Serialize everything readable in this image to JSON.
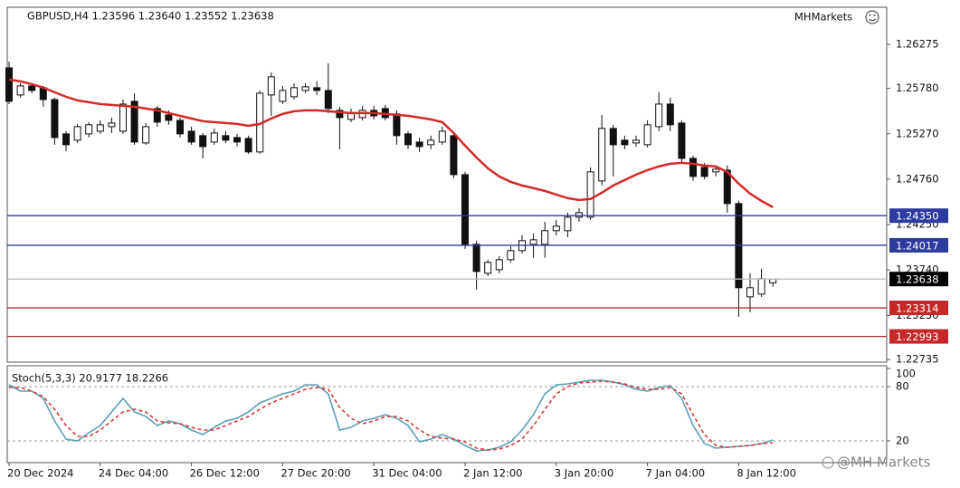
{
  "chart_data": [
    {
      "type": "candlestick",
      "title": "GBPUSD,H4  1.23596 1.23640 1.23552 1.23638",
      "brand": "MHMarkets",
      "categories": [
        "20 Dec 2024",
        null,
        null,
        null,
        null,
        null,
        null,
        null,
        "24 Dec 04:00",
        null,
        null,
        null,
        null,
        null,
        null,
        null,
        "26 Dec 12:00",
        null,
        null,
        null,
        null,
        null,
        null,
        null,
        "27 Dec 20:00",
        null,
        null,
        null,
        null,
        null,
        null,
        null,
        "31 Dec 04:00",
        null,
        null,
        null,
        null,
        null,
        null,
        null,
        "2 Jan 12:00",
        null,
        null,
        null,
        null,
        null,
        null,
        null,
        "3 Jan 20:00",
        null,
        null,
        null,
        null,
        null,
        null,
        null,
        "7 Jan 04:00",
        null,
        null,
        null,
        null,
        null,
        null,
        null,
        "8 Jan 12:00",
        null,
        null,
        null
      ],
      "open": [
        1.26011,
        1.25706,
        1.25808,
        1.25788,
        1.25655,
        1.25269,
        1.25198,
        1.25269,
        1.25299,
        1.2535,
        1.25299,
        1.25635,
        1.25167,
        1.25554,
        1.25482,
        1.25421,
        1.25299,
        1.25249,
        1.25177,
        1.25249,
        1.25228,
        1.25218,
        1.25066,
        1.25706,
        1.25635,
        1.25686,
        1.25757,
        1.25788,
        1.25757,
        1.25533,
        1.25432,
        1.25452,
        1.25533,
        1.25554,
        1.25493,
        1.25269,
        1.25177,
        1.25147,
        1.25177,
        1.25249,
        1.24811,
        1.24028,
        1.23703,
        1.23743,
        1.23855,
        1.23957,
        1.24028,
        1.24028,
        1.24181,
        1.24181,
        1.24333,
        1.24333,
        1.2474,
        1.2533,
        1.25198,
        1.25167,
        1.25147,
        1.2535,
        1.25604,
        1.25391,
        1.24994,
        1.24893,
        1.24842,
        1.24862,
        1.24486,
        1.23438,
        1.23469,
        1.23596
      ],
      "high": [
        1.26082,
        1.25838,
        1.25838,
        1.25808,
        1.25676,
        1.25299,
        1.25381,
        1.25401,
        1.25421,
        1.25452,
        1.25655,
        1.25726,
        1.25391,
        1.25584,
        1.25533,
        1.25452,
        1.2535,
        1.25279,
        1.2533,
        1.25299,
        1.25269,
        1.25249,
        1.25757,
        1.2596,
        1.25808,
        1.25838,
        1.25838,
        1.25859,
        1.26062,
        1.25574,
        1.25554,
        1.25584,
        1.25584,
        1.25594,
        1.25533,
        1.25299,
        1.25228,
        1.25249,
        1.2535,
        1.25279,
        1.24842,
        1.24069,
        1.23855,
        1.23896,
        1.24008,
        1.2413,
        1.2415,
        1.24282,
        1.24303,
        1.24384,
        1.24435,
        1.24893,
        1.25482,
        1.25371,
        1.25249,
        1.25249,
        1.25421,
        1.25737,
        1.25676,
        1.25421,
        1.25025,
        1.24943,
        1.24913,
        1.24913,
        1.24516,
        1.23703,
        1.23753,
        1.2364
      ],
      "low": [
        1.25604,
        1.25676,
        1.25726,
        1.25574,
        1.25147,
        1.25076,
        1.25167,
        1.25228,
        1.25269,
        1.25279,
        1.25269,
        1.25147,
        1.25147,
        1.2535,
        1.25371,
        1.25228,
        1.25147,
        1.24994,
        1.25147,
        1.25167,
        1.25126,
        1.25045,
        1.25045,
        1.25472,
        1.25604,
        1.25655,
        1.25726,
        1.25706,
        1.25503,
        1.25096,
        1.25401,
        1.25421,
        1.25432,
        1.25421,
        1.25147,
        1.25096,
        1.25066,
        1.25096,
        1.25147,
        1.24771,
        1.23977,
        1.2352,
        1.23672,
        1.23703,
        1.23825,
        1.23926,
        1.23876,
        1.23876,
        1.2413,
        1.2411,
        1.24282,
        1.24303,
        1.24689,
        1.24791,
        1.25096,
        1.25126,
        1.25116,
        1.25299,
        1.25299,
        1.24943,
        1.2474,
        1.2476,
        1.24791,
        1.24384,
        1.23214,
        1.23265,
        1.23438,
        1.23552
      ],
      "close": [
        1.25635,
        1.25808,
        1.25757,
        1.25655,
        1.25228,
        1.25147,
        1.2535,
        1.25371,
        1.25371,
        1.25391,
        1.25604,
        1.25177,
        1.2535,
        1.25401,
        1.25421,
        1.25269,
        1.25177,
        1.25126,
        1.25279,
        1.25198,
        1.25177,
        1.25066,
        1.25726,
        1.2591,
        1.25757,
        1.25788,
        1.25798,
        1.25757,
        1.25554,
        1.25452,
        1.25503,
        1.25533,
        1.25472,
        1.25452,
        1.25249,
        1.25147,
        1.25126,
        1.25198,
        1.25299,
        1.24811,
        1.24028,
        1.23723,
        1.23825,
        1.23855,
        1.23957,
        1.24069,
        1.24079,
        1.24181,
        1.24232,
        1.24333,
        1.24384,
        1.24842,
        1.2533,
        1.25147,
        1.25147,
        1.25198,
        1.25371,
        1.25604,
        1.25371,
        1.24994,
        1.24791,
        1.24791,
        1.24872,
        1.24486,
        1.2354,
        1.2354,
        1.23642,
        1.23638
      ],
      "line_overlay": {
        "color": "#d42a2a",
        "values": [
          1.25879,
          1.25859,
          1.25828,
          1.25788,
          1.25737,
          1.25686,
          1.25645,
          1.25625,
          1.25604,
          1.25594,
          1.25584,
          1.25574,
          1.25554,
          1.25533,
          1.25503,
          1.25472,
          1.25442,
          1.25411,
          1.25401,
          1.25391,
          1.25381,
          1.2536,
          1.25381,
          1.25442,
          1.25493,
          1.25523,
          1.25533,
          1.25533,
          1.25523,
          1.25513,
          1.25503,
          1.25503,
          1.25503,
          1.25493,
          1.25482,
          1.25472,
          1.25452,
          1.25432,
          1.25401,
          1.25279,
          1.25137,
          1.25004,
          1.24882,
          1.24791,
          1.2473,
          1.24689,
          1.24659,
          1.24628,
          1.24587,
          1.24547,
          1.24526,
          1.24537,
          1.24608,
          1.24689,
          1.2475,
          1.24811,
          1.24862,
          1.24903,
          1.24933,
          1.24943,
          1.24933,
          1.24913,
          1.24903,
          1.24842,
          1.2471,
          1.24598,
          1.24516,
          1.24445
        ]
      },
      "bull_color": "#ffffff",
      "bear_color": "#111111",
      "candle_outline": "#111111",
      "ylim": [
        1.22704,
        1.26692
      ],
      "yticks": [
        1.26275,
        {
          "value": 1.2578,
          "label": "1.25780"
        },
        {
          "value": 1.2527,
          "label": "1.25270"
        },
        {
          "value": 1.2476,
          "label": "1.24760"
        },
        {
          "value": 1.2425,
          "label": "1.24250"
        },
        {
          "value": 1.2374,
          "label": "1.23740"
        },
        {
          "value": 1.2323,
          "label": "1.23230"
        },
        1.22735
      ],
      "levels": [
        {
          "value": 1.2435,
          "label": "1.24350",
          "color": "#2d3b9e",
          "line_color": "#2d3b9e"
        },
        {
          "value": 1.24017,
          "label": "1.24017",
          "color": "#2d3b9e",
          "line_color": "#2d3b9e"
        },
        {
          "value": 1.23638,
          "label": "1.23638",
          "color": "#000000",
          "line_color": "#bbbbbb"
        },
        {
          "value": 1.23314,
          "label": "1.23314",
          "color": "#c62828",
          "line_color": "#b03030"
        },
        {
          "value": 1.22993,
          "label": "1.22993",
          "color": "#c62828",
          "line_color": "#b03030"
        }
      ]
    },
    {
      "type": "line",
      "title": "Stoch(5,3,3) 20.9177 18.2266",
      "series": [
        {
          "color": "#5b9fb5",
          "dash": false,
          "values": [
            82,
            75,
            75,
            67,
            42,
            22,
            20,
            29,
            37,
            52,
            67,
            52,
            47,
            37,
            42,
            39,
            32,
            27,
            35,
            42,
            45,
            52,
            62,
            67,
            72,
            75,
            82,
            82,
            72,
            32,
            35,
            42,
            45,
            49,
            45,
            37,
            19,
            22,
            27,
            22,
            15,
            9,
            10,
            13,
            19,
            32,
            49,
            72,
            82,
            83,
            85,
            87,
            87,
            85,
            82,
            77,
            75,
            79,
            81,
            67,
            37,
            17,
            12,
            13,
            14,
            15,
            17,
            21
          ]
        },
        {
          "color": "#d43c3c",
          "dash": true,
          "values": [
            79,
            79,
            75,
            69,
            55,
            37,
            25,
            25,
            32,
            42,
            52,
            55,
            52,
            42,
            40,
            39,
            35,
            32,
            32,
            37,
            42,
            47,
            55,
            62,
            67,
            72,
            77,
            79,
            77,
            57,
            45,
            39,
            42,
            47,
            47,
            42,
            32,
            25,
            23,
            22,
            19,
            12,
            10,
            11,
            15,
            22,
            37,
            55,
            72,
            80,
            84,
            85,
            86,
            85,
            83,
            79,
            77,
            77,
            79,
            72,
            49,
            27,
            15,
            13,
            14,
            15,
            17,
            18
          ]
        }
      ],
      "ylim": [
        -4,
        103
      ],
      "yticks": [
        100,
        80,
        20
      ],
      "dashed_levels": [
        80,
        20
      ]
    }
  ],
  "watermark": "@MH Markets"
}
